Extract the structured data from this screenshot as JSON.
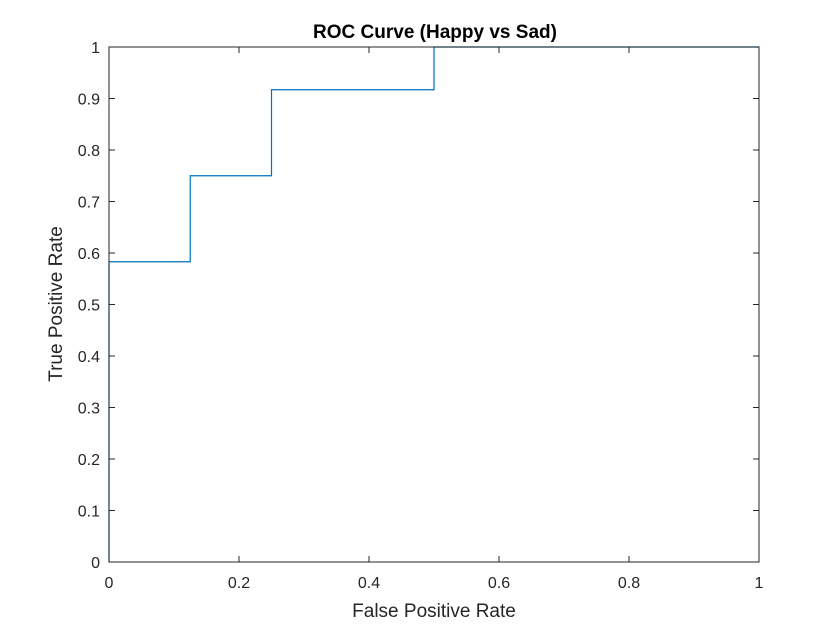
{
  "chart_data": {
    "type": "line",
    "title": "ROC Curve (Happy vs Sad)",
    "xlabel": "False Positive Rate",
    "ylabel": "True Positive Rate",
    "xlim": [
      0,
      1
    ],
    "ylim": [
      0,
      1
    ],
    "grid": false,
    "xticks": [
      0,
      0.2,
      0.4,
      0.6,
      0.8,
      1
    ],
    "xtick_labels": [
      "0",
      "0.2",
      "0.4",
      "0.6",
      "0.8",
      "1"
    ],
    "yticks": [
      0,
      0.1,
      0.2,
      0.3,
      0.4,
      0.5,
      0.6,
      0.7,
      0.8,
      0.9,
      1
    ],
    "ytick_labels": [
      "0",
      "0.1",
      "0.2",
      "0.3",
      "0.4",
      "0.5",
      "0.6",
      "0.7",
      "0.8",
      "0.9",
      "1"
    ],
    "series": [
      {
        "color": "#0072BD",
        "x": [
          0,
          0,
          0.125,
          0.125,
          0.25,
          0.25,
          0.5,
          0.5,
          1
        ],
        "y": [
          0,
          0.583,
          0.583,
          0.75,
          0.75,
          0.917,
          0.917,
          1,
          1
        ]
      }
    ]
  }
}
